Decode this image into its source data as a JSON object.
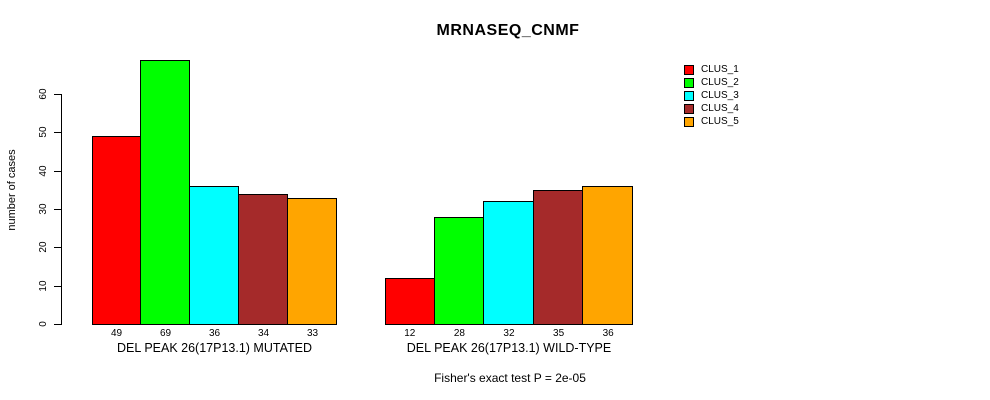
{
  "chart_data": {
    "type": "bar",
    "title": "MRNASEQ_CNMF",
    "ylabel": "number of cases",
    "yticks": [
      0,
      10,
      20,
      30,
      40,
      50,
      60
    ],
    "ylim": [
      0,
      69
    ],
    "grid": false,
    "legend_position": "right",
    "categories": [
      "DEL PEAK 26(17P13.1) MUTATED",
      "DEL PEAK 26(17P13.1) WILD-TYPE"
    ],
    "series": [
      {
        "name": "CLUS_1",
        "color": "#FF0000",
        "values": [
          49,
          12
        ]
      },
      {
        "name": "CLUS_2",
        "color": "#00FF00",
        "values": [
          69,
          28
        ]
      },
      {
        "name": "CLUS_3",
        "color": "#00FFFF",
        "values": [
          36,
          32
        ]
      },
      {
        "name": "CLUS_4",
        "color": "#A52A2A",
        "values": [
          34,
          35
        ]
      },
      {
        "name": "CLUS_5",
        "color": "#FFA500",
        "values": [
          33,
          36
        ]
      }
    ],
    "bar_value_labels": [
      [
        49,
        69,
        36,
        34,
        33
      ],
      [
        12,
        28,
        32,
        35,
        36
      ]
    ],
    "footnote": "Fisher's exact test P = 2e-05"
  }
}
